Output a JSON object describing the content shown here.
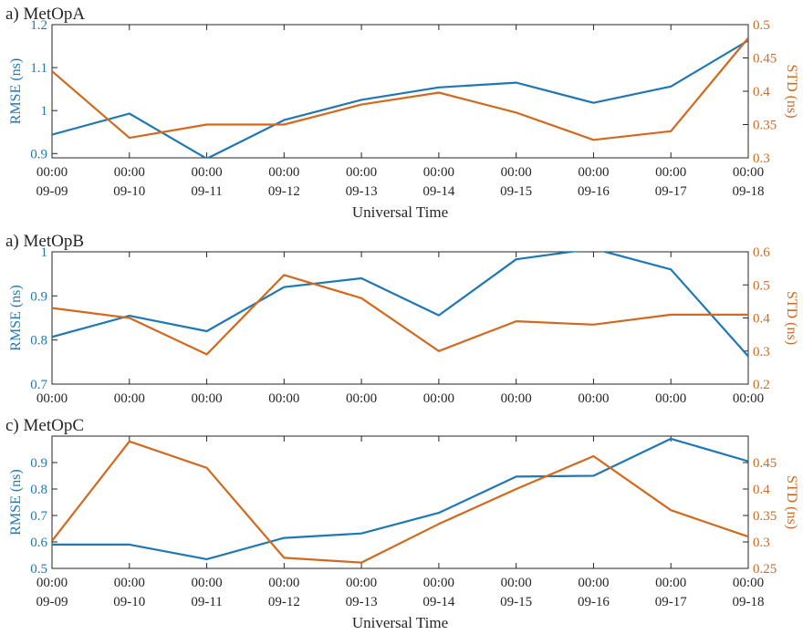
{
  "colors": {
    "rmse": "#1f77b4",
    "std": "#d2691e",
    "axis": "#262626"
  },
  "xaxis_title": "Universal Time",
  "tick_time_label": "00:00",
  "tick_dates": [
    "09-09",
    "09-10",
    "09-11",
    "09-12",
    "09-13",
    "09-14",
    "09-15",
    "09-16",
    "09-17",
    "09-18"
  ],
  "chart_data": [
    {
      "type": "line",
      "title": "a) MetOpA",
      "xlabel": "Universal Time",
      "x": [
        "09-09 00:00",
        "09-10 00:00",
        "09-11 00:00",
        "09-12 00:00",
        "09-13 00:00",
        "09-14 00:00",
        "09-15 00:00",
        "09-16 00:00",
        "09-17 00:00",
        "09-18 00:00"
      ],
      "show_dates": true,
      "show_xlabel": true,
      "y_left": {
        "label": "RMSE (ns)",
        "lim": [
          0.89,
          1.2
        ],
        "ticks": [
          0.9,
          1,
          1.1,
          1.2
        ],
        "tick_labels": [
          "0.9",
          "1",
          "1.1",
          "1.2"
        ]
      },
      "y_right": {
        "label": "STD (ns)",
        "lim": [
          0.3,
          0.5
        ],
        "ticks": [
          0.3,
          0.35,
          0.4,
          0.45,
          0.5
        ],
        "tick_labels": [
          "0.3",
          "0.35",
          "0.4",
          "0.45",
          "0.5"
        ]
      },
      "series": [
        {
          "axis": "left",
          "values": [
            0.944,
            0.993,
            0.888,
            0.978,
            1.025,
            1.054,
            1.065,
            1.018,
            1.056,
            1.163
          ]
        },
        {
          "axis": "right",
          "values": [
            0.43,
            0.33,
            0.35,
            0.35,
            0.38,
            0.398,
            0.368,
            0.327,
            0.34,
            0.48
          ]
        }
      ],
      "grid": false
    },
    {
      "type": "line",
      "title": "a) MetOpB",
      "xlabel": "",
      "x": [
        "09-09 00:00",
        "09-10 00:00",
        "09-11 00:00",
        "09-12 00:00",
        "09-13 00:00",
        "09-14 00:00",
        "09-15 00:00",
        "09-16 00:00",
        "09-17 00:00",
        "09-18 00:00"
      ],
      "show_dates": false,
      "show_xlabel": false,
      "y_left": {
        "label": "RMSE (ns)",
        "lim": [
          0.7,
          1.0
        ],
        "ticks": [
          0.7,
          0.8,
          0.9,
          1.0
        ],
        "tick_labels": [
          "0.7",
          "0.8",
          "0.9",
          "1"
        ]
      },
      "y_right": {
        "label": "STD (ns)",
        "lim": [
          0.2,
          0.6
        ],
        "ticks": [
          0.2,
          0.3,
          0.4,
          0.5,
          0.6
        ],
        "tick_labels": [
          "0.2",
          "0.3",
          "0.4",
          "0.5",
          "0.6"
        ]
      },
      "series": [
        {
          "axis": "left",
          "values": [
            0.807,
            0.855,
            0.82,
            0.92,
            0.94,
            0.856,
            0.983,
            1.007,
            0.96,
            0.763
          ]
        },
        {
          "axis": "right",
          "values": [
            0.43,
            0.4,
            0.29,
            0.53,
            0.46,
            0.3,
            0.39,
            0.38,
            0.41,
            0.41
          ]
        }
      ],
      "grid": false
    },
    {
      "type": "line",
      "title": "c) MetOpC",
      "xlabel": "Universal Time",
      "x": [
        "09-09 00:00",
        "09-10 00:00",
        "09-11 00:00",
        "09-12 00:00",
        "09-13 00:00",
        "09-14 00:00",
        "09-15 00:00",
        "09-16 00:00",
        "09-17 00:00",
        "09-18 00:00"
      ],
      "show_dates": true,
      "show_xlabel": true,
      "y_left": {
        "label": "RMSE (ns)",
        "lim": [
          0.5,
          1.0
        ],
        "ticks": [
          0.5,
          0.6,
          0.7,
          0.8,
          0.9
        ],
        "tick_labels": [
          "0.5",
          "0.6",
          "0.7",
          "0.8",
          "0.9"
        ]
      },
      "y_right": {
        "label": "STD (ns)",
        "lim": [
          0.25,
          0.5
        ],
        "ticks": [
          0.25,
          0.3,
          0.35,
          0.4,
          0.45
        ],
        "tick_labels": [
          "0.25",
          "0.3",
          "0.35",
          "0.4",
          "0.45"
        ]
      },
      "series": [
        {
          "axis": "left",
          "values": [
            0.59,
            0.59,
            0.535,
            0.615,
            0.632,
            0.71,
            0.847,
            0.85,
            0.99,
            0.905
          ]
        },
        {
          "axis": "right",
          "values": [
            0.302,
            0.49,
            0.44,
            0.27,
            0.261,
            0.334,
            0.4,
            0.462,
            0.36,
            0.31
          ]
        }
      ],
      "grid": false
    }
  ]
}
